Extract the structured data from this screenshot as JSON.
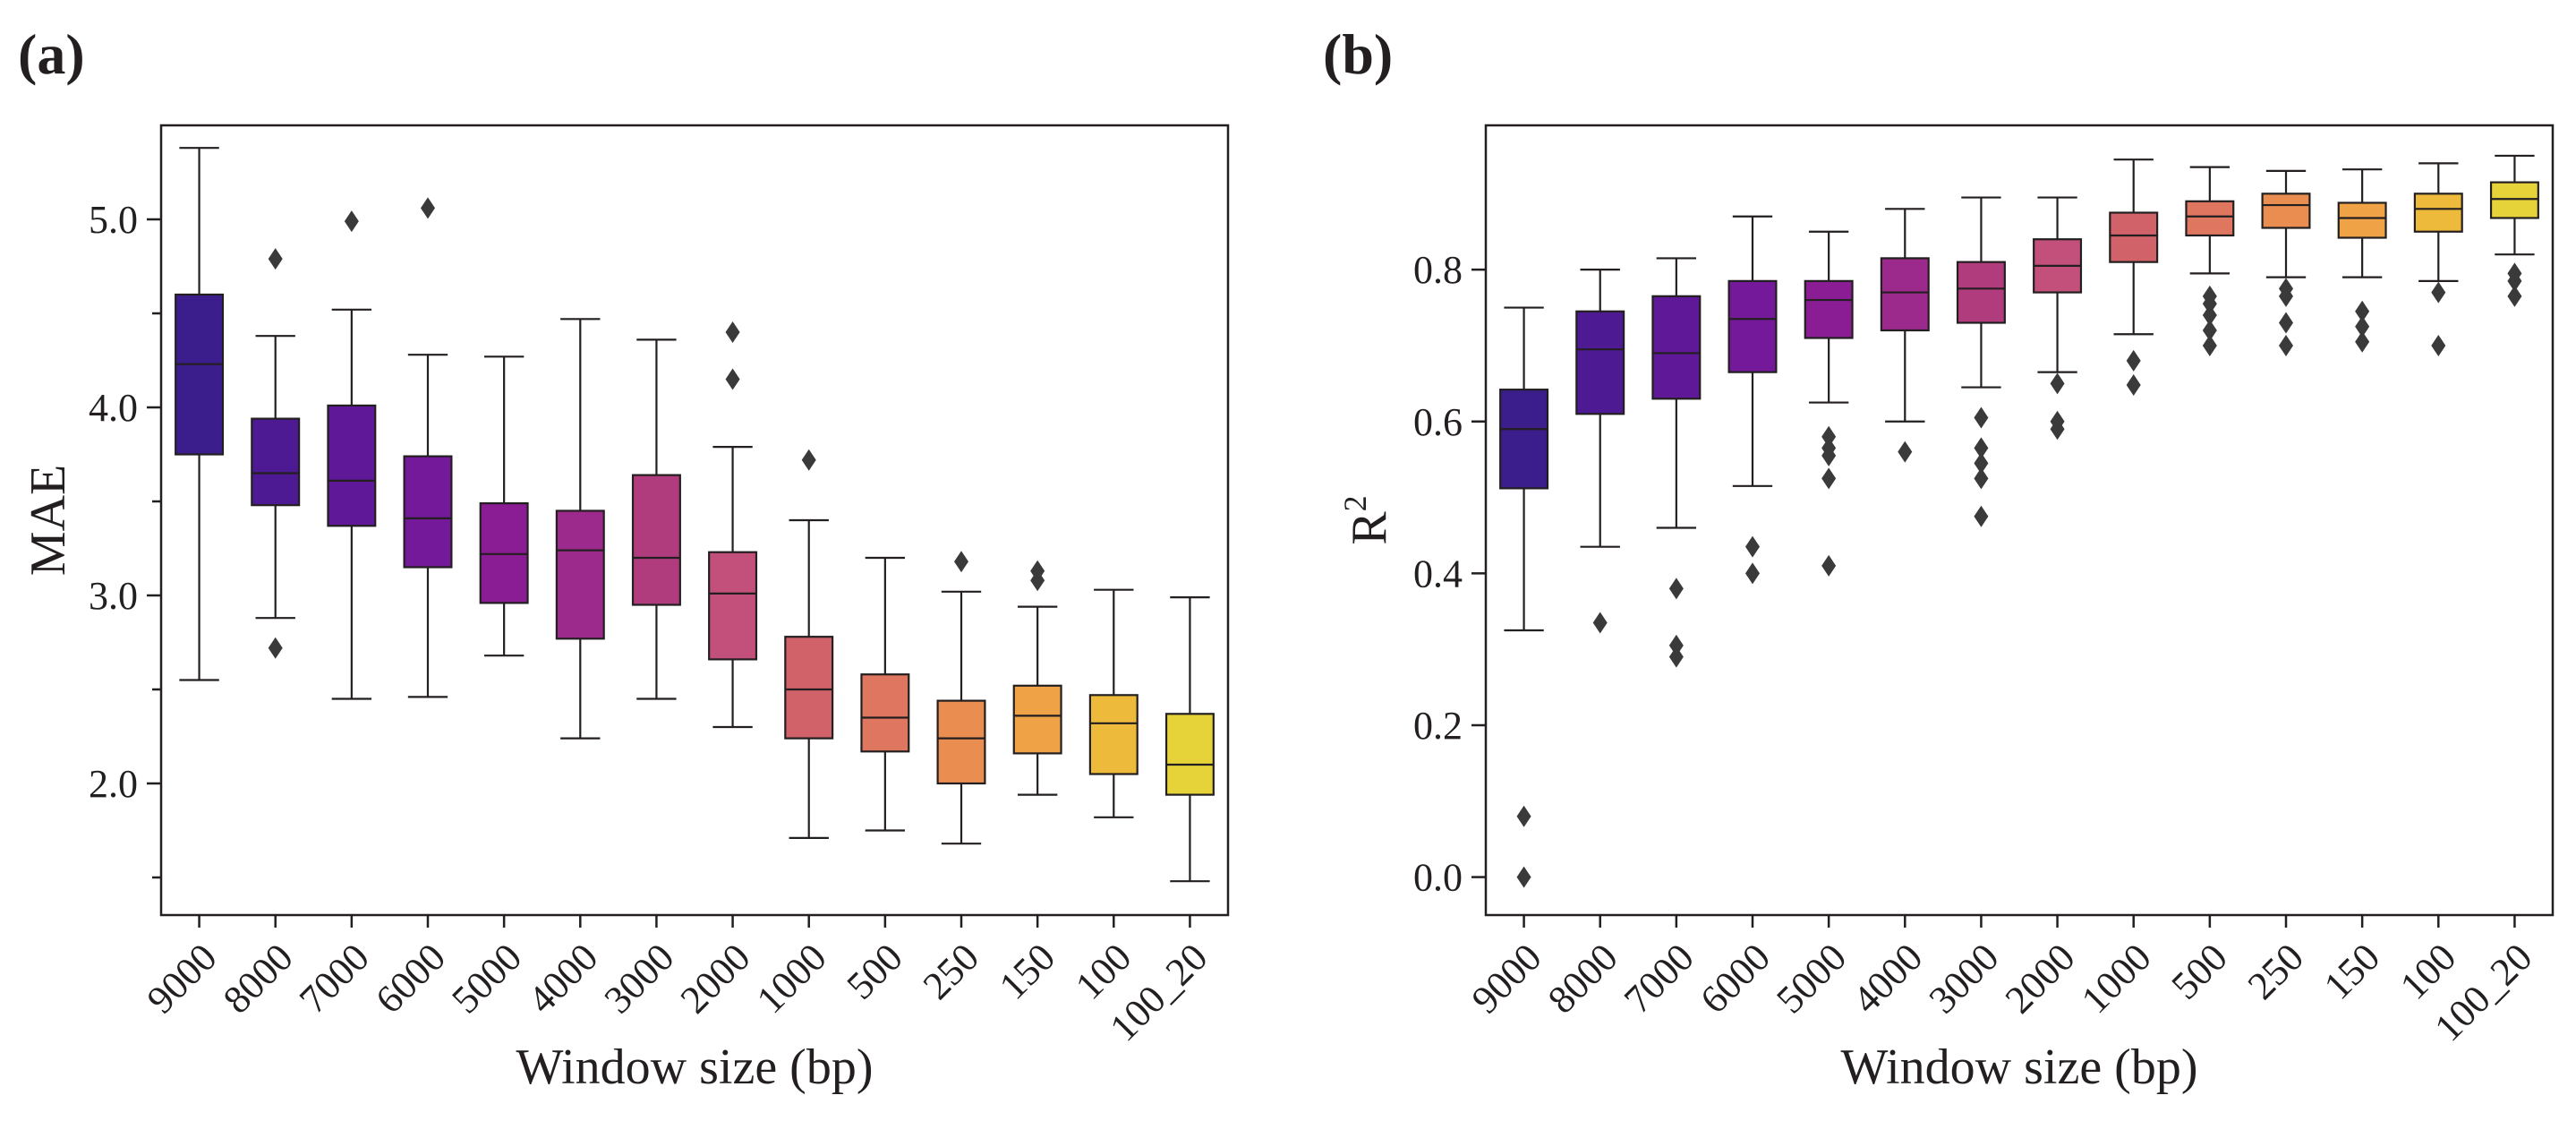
{
  "chart_data": [
    {
      "type": "box",
      "panel_label": "(a)",
      "xlabel": "Window size (bp)",
      "ylabel": "MAE",
      "ylabel_sup": "",
      "ylim": [
        1.3,
        5.5
      ],
      "yticks": [
        2.0,
        3.0,
        4.0,
        5.0
      ],
      "ytick_labels": [
        "2.0",
        "3.0",
        "4.0",
        "5.0"
      ],
      "minor_yticks": [
        1.5,
        2.5,
        3.5,
        4.5
      ],
      "categories": [
        "9000",
        "8000",
        "7000",
        "6000",
        "5000",
        "4000",
        "3000",
        "2000",
        "1000",
        "500",
        "250",
        "150",
        "100",
        "100_20"
      ],
      "colors": [
        "#3b1e8c",
        "#4d1a94",
        "#5f1898",
        "#74199a",
        "#8a1c94",
        "#9c2a8c",
        "#b03c7e",
        "#c2507a",
        "#d1626a",
        "#df765f",
        "#e98d50",
        "#efa346",
        "#eeba3c",
        "#e6d33a"
      ],
      "boxes": [
        {
          "whislo": 2.55,
          "q1": 3.75,
          "med": 4.23,
          "q3": 4.6,
          "whishi": 5.38,
          "fliers": []
        },
        {
          "whislo": 2.88,
          "q1": 3.48,
          "med": 3.65,
          "q3": 3.94,
          "whishi": 4.38,
          "fliers": [
            2.72,
            4.79
          ]
        },
        {
          "whislo": 2.45,
          "q1": 3.37,
          "med": 3.61,
          "q3": 4.01,
          "whishi": 4.52,
          "fliers": [
            4.99
          ]
        },
        {
          "whislo": 2.46,
          "q1": 3.15,
          "med": 3.41,
          "q3": 3.74,
          "whishi": 4.28,
          "fliers": [
            5.06
          ]
        },
        {
          "whislo": 2.68,
          "q1": 2.96,
          "med": 3.22,
          "q3": 3.49,
          "whishi": 4.27,
          "fliers": []
        },
        {
          "whislo": 2.24,
          "q1": 2.77,
          "med": 3.24,
          "q3": 3.45,
          "whishi": 4.47,
          "fliers": []
        },
        {
          "whislo": 2.45,
          "q1": 2.95,
          "med": 3.2,
          "q3": 3.64,
          "whishi": 4.36,
          "fliers": []
        },
        {
          "whislo": 2.3,
          "q1": 2.66,
          "med": 3.01,
          "q3": 3.23,
          "whishi": 3.79,
          "fliers": [
            4.15,
            4.4
          ]
        },
        {
          "whislo": 1.71,
          "q1": 2.24,
          "med": 2.5,
          "q3": 2.78,
          "whishi": 3.4,
          "fliers": [
            3.72
          ]
        },
        {
          "whislo": 1.75,
          "q1": 2.17,
          "med": 2.35,
          "q3": 2.58,
          "whishi": 3.2,
          "fliers": []
        },
        {
          "whislo": 1.68,
          "q1": 2.0,
          "med": 2.24,
          "q3": 2.44,
          "whishi": 3.02,
          "fliers": [
            3.18
          ]
        },
        {
          "whislo": 1.94,
          "q1": 2.16,
          "med": 2.36,
          "q3": 2.52,
          "whishi": 2.94,
          "fliers": [
            3.08,
            3.13
          ]
        },
        {
          "whislo": 1.82,
          "q1": 2.05,
          "med": 2.32,
          "q3": 2.47,
          "whishi": 3.03,
          "fliers": []
        },
        {
          "whislo": 1.48,
          "q1": 1.94,
          "med": 2.1,
          "q3": 2.37,
          "whishi": 2.99,
          "fliers": []
        }
      ]
    },
    {
      "type": "box",
      "panel_label": "(b)",
      "xlabel": "Window size (bp)",
      "ylabel": "R",
      "ylabel_sup": "2",
      "ylim": [
        -0.05,
        0.99
      ],
      "yticks": [
        0.0,
        0.2,
        0.4,
        0.6,
        0.8
      ],
      "ytick_labels": [
        "0.0",
        "0.2",
        "0.4",
        "0.6",
        "0.8"
      ],
      "minor_yticks": [],
      "categories": [
        "9000",
        "8000",
        "7000",
        "6000",
        "5000",
        "4000",
        "3000",
        "2000",
        "1000",
        "500",
        "250",
        "150",
        "100",
        "100_20"
      ],
      "colors": [
        "#3b1e8c",
        "#4d1a94",
        "#5f1898",
        "#74199a",
        "#8a1c94",
        "#9c2a8c",
        "#b03c7e",
        "#c2507a",
        "#d1626a",
        "#df765f",
        "#e98d50",
        "#efa346",
        "#eeba3c",
        "#e6d33a"
      ],
      "boxes": [
        {
          "whislo": 0.325,
          "q1": 0.512,
          "med": 0.59,
          "q3": 0.642,
          "whishi": 0.75,
          "fliers": [
            0.0,
            0.08
          ]
        },
        {
          "whislo": 0.435,
          "q1": 0.61,
          "med": 0.695,
          "q3": 0.745,
          "whishi": 0.8,
          "fliers": [
            0.335
          ]
        },
        {
          "whislo": 0.46,
          "q1": 0.63,
          "med": 0.69,
          "q3": 0.765,
          "whishi": 0.815,
          "fliers": [
            0.29,
            0.305,
            0.38
          ]
        },
        {
          "whislo": 0.515,
          "q1": 0.665,
          "med": 0.735,
          "q3": 0.785,
          "whishi": 0.87,
          "fliers": [
            0.4,
            0.435
          ]
        },
        {
          "whislo": 0.625,
          "q1": 0.71,
          "med": 0.76,
          "q3": 0.785,
          "whishi": 0.85,
          "fliers": [
            0.41,
            0.525,
            0.555,
            0.565,
            0.58
          ]
        },
        {
          "whislo": 0.6,
          "q1": 0.72,
          "med": 0.77,
          "q3": 0.815,
          "whishi": 0.88,
          "fliers": [
            0.56
          ]
        },
        {
          "whislo": 0.645,
          "q1": 0.73,
          "med": 0.775,
          "q3": 0.81,
          "whishi": 0.895,
          "fliers": [
            0.475,
            0.525,
            0.545,
            0.565,
            0.605
          ]
        },
        {
          "whislo": 0.665,
          "q1": 0.77,
          "med": 0.805,
          "q3": 0.84,
          "whishi": 0.895,
          "fliers": [
            0.59,
            0.6,
            0.65
          ]
        },
        {
          "whislo": 0.715,
          "q1": 0.81,
          "med": 0.845,
          "q3": 0.875,
          "whishi": 0.945,
          "fliers": [
            0.648,
            0.68
          ]
        },
        {
          "whislo": 0.795,
          "q1": 0.845,
          "med": 0.87,
          "q3": 0.89,
          "whishi": 0.935,
          "fliers": [
            0.7,
            0.72,
            0.74,
            0.755,
            0.765
          ]
        },
        {
          "whislo": 0.79,
          "q1": 0.855,
          "med": 0.885,
          "q3": 0.9,
          "whishi": 0.93,
          "fliers": [
            0.7,
            0.73,
            0.765,
            0.775
          ]
        },
        {
          "whislo": 0.79,
          "q1": 0.842,
          "med": 0.868,
          "q3": 0.888,
          "whishi": 0.932,
          "fliers": [
            0.705,
            0.725,
            0.745
          ]
        },
        {
          "whislo": 0.785,
          "q1": 0.85,
          "med": 0.88,
          "q3": 0.9,
          "whishi": 0.94,
          "fliers": [
            0.7,
            0.77
          ]
        },
        {
          "whislo": 0.82,
          "q1": 0.868,
          "med": 0.893,
          "q3": 0.915,
          "whishi": 0.95,
          "fliers": [
            0.765,
            0.785,
            0.795
          ]
        }
      ]
    }
  ]
}
